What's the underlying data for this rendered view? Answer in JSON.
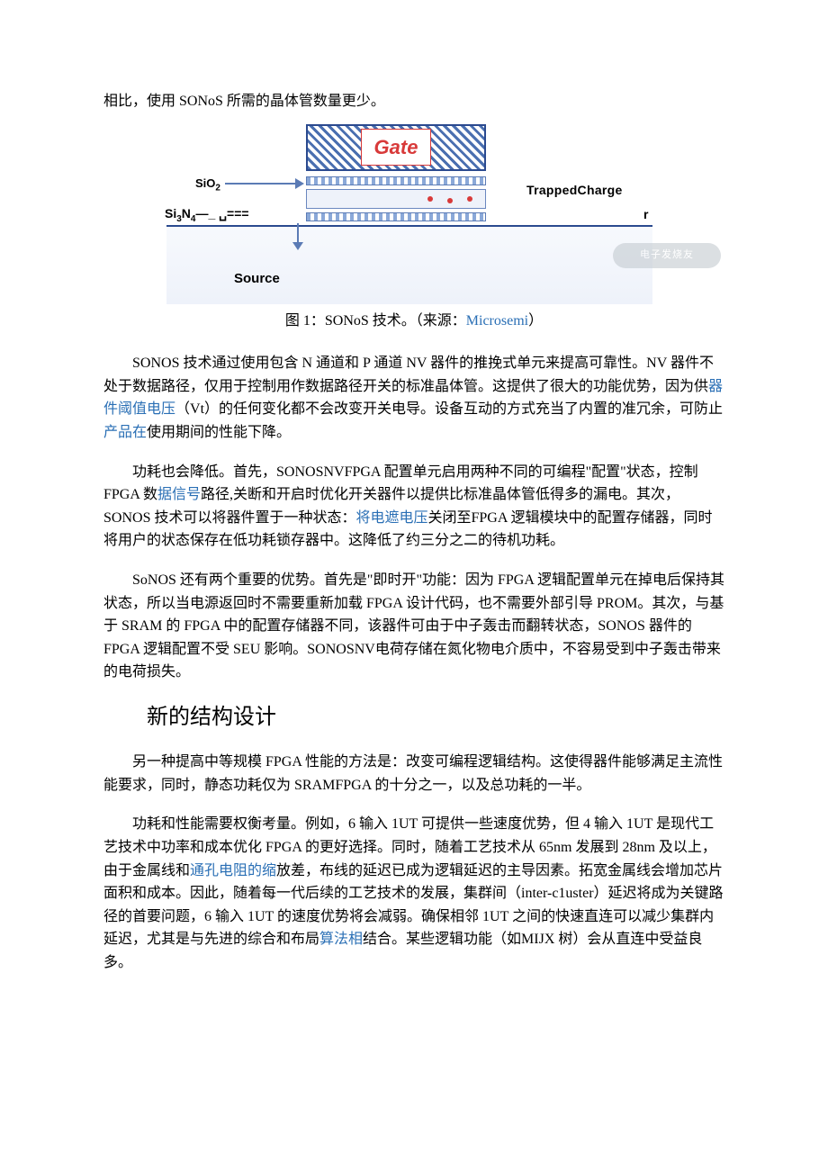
{
  "top_line": "相比，使用 SONoS 所需的晶体管数量更少。",
  "figure": {
    "gate": "Gate",
    "sio2_html": "SiO<sub>2</sub>",
    "si3n4_html": "Si<sub>3</sub>N<sub>4</sub>—_ ␣===",
    "trapped": "TrappedCharge",
    "source": "Source",
    "r": "r",
    "watermark": "电子发烧友",
    "colors": {
      "gate_hatch_a": "#4a6fb0",
      "gate_hatch_b": "#ffffff",
      "gate_border": "#2b4a8f",
      "gate_text": "#d83a3a",
      "oxide_a": "#8aa8d8",
      "oxide_b": "#ffffff",
      "nitride_fill": "#eef2fa",
      "body_line": "#2b4a8f",
      "arrow": "#5b7bb5",
      "charge": "#d83a3a",
      "watermark_bg": "#bfc6cc"
    }
  },
  "caption": {
    "before": "图 1：SONoS 技术。（来源：",
    "link": "Microsemi",
    "after": "）"
  },
  "p1": {
    "t1": "SONOS 技术通过使用包含 N 通道和 P 通道 NV 器件的推挽式单元来提高可靠性。NV 器件不处于数据路径，仅用于控制用作数据路径开关的标准晶体管。这提供了很大的功能优势，因为供",
    "l1": "器件阈值电压",
    "t2": "（Vt）的任何变化都不会改变开关电导。设备互动的方式充当了内置的准冗余，可防止",
    "l2": "产品在",
    "t3": "使用期间的性能下降。"
  },
  "p2": {
    "t1": "功耗也会降低。首先，SONOSNVFPGA 配置单元启用两种不同的可编程\"配置\"状态，控制 FPGA 数",
    "l1": "据信号",
    "t2": "路径,关断和开启时优化开关器件以提供比标准晶体管低得多的漏电。其次，SONOS 技术可以将器件置于一种状态：",
    "l2": "将电遮电压",
    "t3": "关闭至FPGA 逻辑模块中的配置存储器，同时将用户的状态保存在低功耗锁存器中。这降低了约三分之二的待机功耗。"
  },
  "p3": "SoNOS 还有两个重要的优势。首先是\"即时开\"功能：因为 FPGA 逻辑配置单元在掉电后保持其状态，所以当电源返回时不需要重新加载 FPGA 设计代码，也不需要外部引导 PROM。其次，与基于 SRAM 的 FPGA 中的配置存储器不同，该器件可由于中子轰击而翻转状态，SONOS 器件的 FPGA 逻辑配置不受 SEU 影响。SONOSNV电荷存储在氮化物电介质中，不容易受到中子轰击带来的电荷损失。",
  "h1": "新的结构设计",
  "p4": "另一种提高中等规模 FPGA 性能的方法是：改变可编程逻辑结构。这使得器件能够满足主流性能要求，同时，静态功耗仅为 SRAMFPGA 的十分之一，以及总功耗的一半。",
  "p5": {
    "t1": "功耗和性能需要权衡考量。例如，6 输入 1UT 可提供一些速度优势，但 4 输入 1UT 是现代工艺技术中功率和成本优化 FPGA 的更好选择。同时，随着工艺技术从 65nm 发展到 28nm 及以上，由于金属线和",
    "l1": "通孔电阻的缩",
    "t2": "放差，布线的延迟已成为逻辑延迟的主导因素。拓宽金属线会增加芯片面积和成本。因此，随着每一代后续的工艺技术的发展，集群间（inter-c1uster）延迟将成为关键路径的首要问题，6 输入 1UT 的速度优势将会减弱。确保相邻 1UT 之间的快速直连可以减少集群内延迟，尤其是与先进的综合和布局",
    "l2": "算法相",
    "t3": "结合。某些逻辑功能（如MIJX 树）会从直连中受益良多。"
  },
  "link_color": "#2a6fb5"
}
